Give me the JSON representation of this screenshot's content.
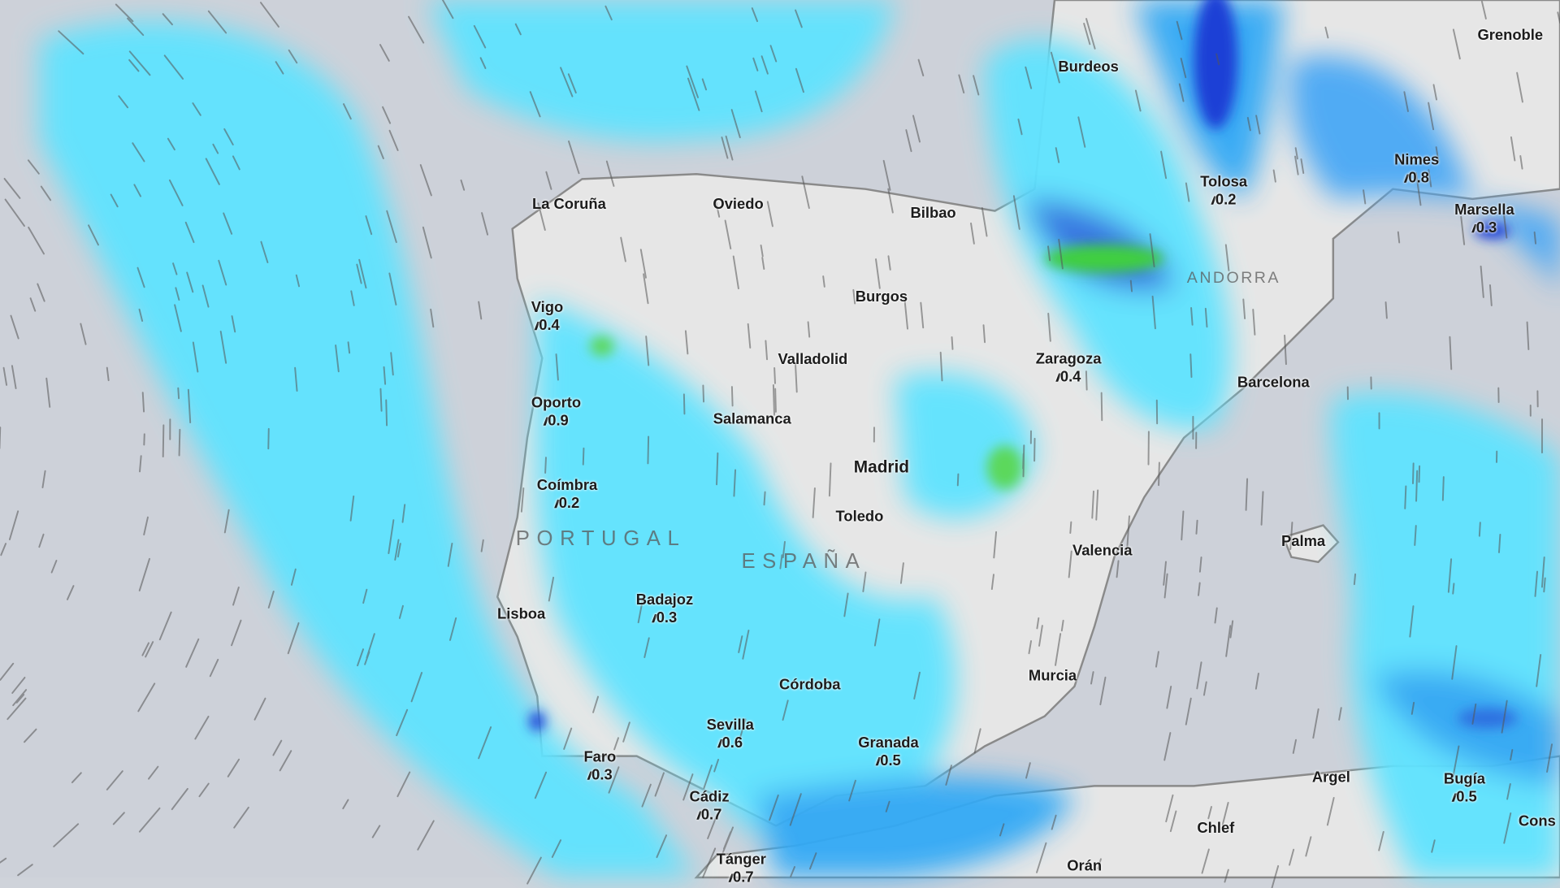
{
  "map": {
    "layer": "precipitation and wind",
    "colors": {
      "sea": "#cdd1d9",
      "land": "#e6e6e6",
      "rain_light": "#5fe3ff",
      "rain_medium": "#33a9f5",
      "rain_heavy": "#1f3fd6",
      "rain_intense": "#3fcf3f"
    },
    "countries": [
      {
        "name": "PORTUGAL"
      },
      {
        "name": "ESPAÑA"
      },
      {
        "name": "ANDORRA"
      }
    ],
    "cities": [
      {
        "name": "La Coruña"
      },
      {
        "name": "Oviedo"
      },
      {
        "name": "Bilbao"
      },
      {
        "name": "Burdeos"
      },
      {
        "name": "Grenoble"
      },
      {
        "name": "Tolosa",
        "value": "0.2"
      },
      {
        "name": "Nimes",
        "value": "0.8"
      },
      {
        "name": "Marsella",
        "value": "0.3"
      },
      {
        "name": "Vigo",
        "value": "0.4"
      },
      {
        "name": "Burgos"
      },
      {
        "name": "Valladolid"
      },
      {
        "name": "Zaragoza",
        "value": "0.4"
      },
      {
        "name": "Barcelona"
      },
      {
        "name": "Oporto",
        "value": "0.9"
      },
      {
        "name": "Salamanca"
      },
      {
        "name": "Madrid"
      },
      {
        "name": "Coímbra",
        "value": "0.2"
      },
      {
        "name": "Toledo"
      },
      {
        "name": "Valencia"
      },
      {
        "name": "Palma"
      },
      {
        "name": "Lisboa"
      },
      {
        "name": "Badajoz",
        "value": "0.3"
      },
      {
        "name": "Córdoba"
      },
      {
        "name": "Murcia"
      },
      {
        "name": "Sevilla",
        "value": "0.6"
      },
      {
        "name": "Granada",
        "value": "0.5"
      },
      {
        "name": "Faro",
        "value": "0.3"
      },
      {
        "name": "Argel"
      },
      {
        "name": "Bugía",
        "value": "0.5"
      },
      {
        "name": "Cádiz",
        "value": "0.7"
      },
      {
        "name": "Chlef"
      },
      {
        "name": "Cons"
      },
      {
        "name": "Tánger",
        "value": "0.7"
      },
      {
        "name": "Orán"
      }
    ],
    "rain_symbol": "rain-icon"
  }
}
